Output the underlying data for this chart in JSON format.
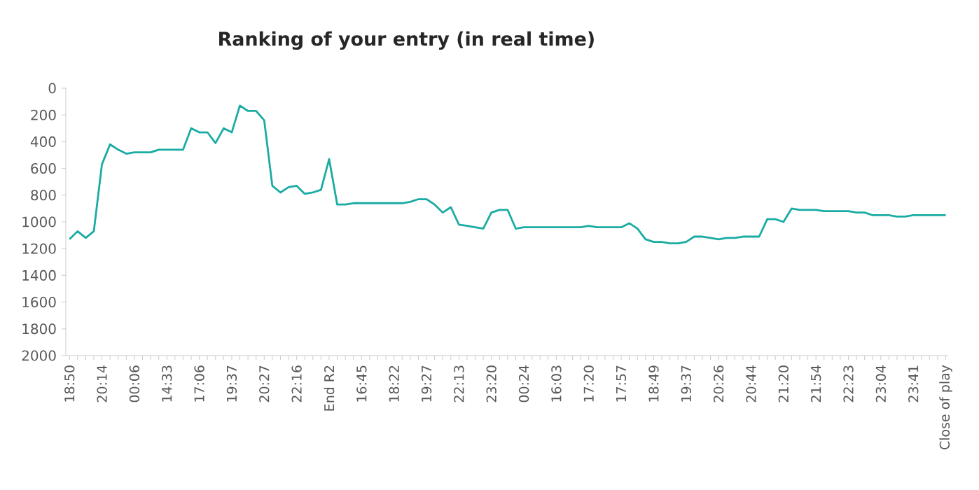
{
  "chart_data": {
    "type": "line",
    "title": "Ranking of your entry (in real time)",
    "categories": [
      "18:50",
      null,
      null,
      null,
      "20:14",
      null,
      null,
      null,
      "00:06",
      null,
      null,
      null,
      "14:33",
      null,
      null,
      null,
      "17:06",
      null,
      null,
      null,
      "19:37",
      null,
      null,
      null,
      "20:27",
      null,
      null,
      null,
      "22:16",
      null,
      null,
      null,
      "End R2",
      null,
      null,
      null,
      "16:45",
      null,
      null,
      null,
      "18:22",
      null,
      null,
      null,
      "19:27",
      null,
      null,
      null,
      "22:13",
      null,
      null,
      null,
      "23:20",
      null,
      null,
      null,
      "00:24",
      null,
      null,
      null,
      "16:03",
      null,
      null,
      null,
      "17:20",
      null,
      null,
      null,
      "17:57",
      null,
      null,
      null,
      "18:49",
      null,
      null,
      null,
      "19:37",
      null,
      null,
      null,
      "20:26",
      null,
      null,
      null,
      "20:44",
      null,
      null,
      null,
      "21:20",
      null,
      null,
      null,
      "21:54",
      null,
      null,
      null,
      "22:23",
      null,
      null,
      null,
      "23:04",
      null,
      null,
      null,
      "23:41",
      null,
      null,
      null,
      "Close of play"
    ],
    "series": [
      {
        "color": "#1aaba3",
        "values": [
          1130,
          1070,
          1120,
          1070,
          570,
          420,
          460,
          490,
          480,
          480,
          480,
          460,
          460,
          460,
          460,
          300,
          330,
          330,
          410,
          300,
          330,
          130,
          170,
          170,
          240,
          730,
          780,
          740,
          730,
          790,
          780,
          760,
          530,
          870,
          870,
          860,
          860,
          860,
          860,
          860,
          860,
          860,
          850,
          830,
          830,
          870,
          930,
          890,
          1020,
          1030,
          1040,
          1050,
          930,
          910,
          910,
          1050,
          1040,
          1040,
          1040,
          1040,
          1040,
          1040,
          1040,
          1040,
          1030,
          1040,
          1040,
          1040,
          1040,
          1010,
          1050,
          1130,
          1150,
          1150,
          1160,
          1160,
          1150,
          1110,
          1110,
          1120,
          1130,
          1120,
          1120,
          1110,
          1110,
          1110,
          980,
          980,
          1000,
          900,
          910,
          910,
          910,
          920,
          920,
          920,
          920,
          930,
          930,
          950,
          950,
          950,
          960,
          960,
          950,
          950,
          950,
          950,
          950
        ]
      }
    ],
    "ylim": [
      2000,
      0
    ],
    "yticks": [
      0,
      200,
      400,
      600,
      800,
      1000,
      1200,
      1400,
      1600,
      1800,
      2000
    ],
    "grid": false,
    "marker": "none",
    "line_style": "solid"
  }
}
